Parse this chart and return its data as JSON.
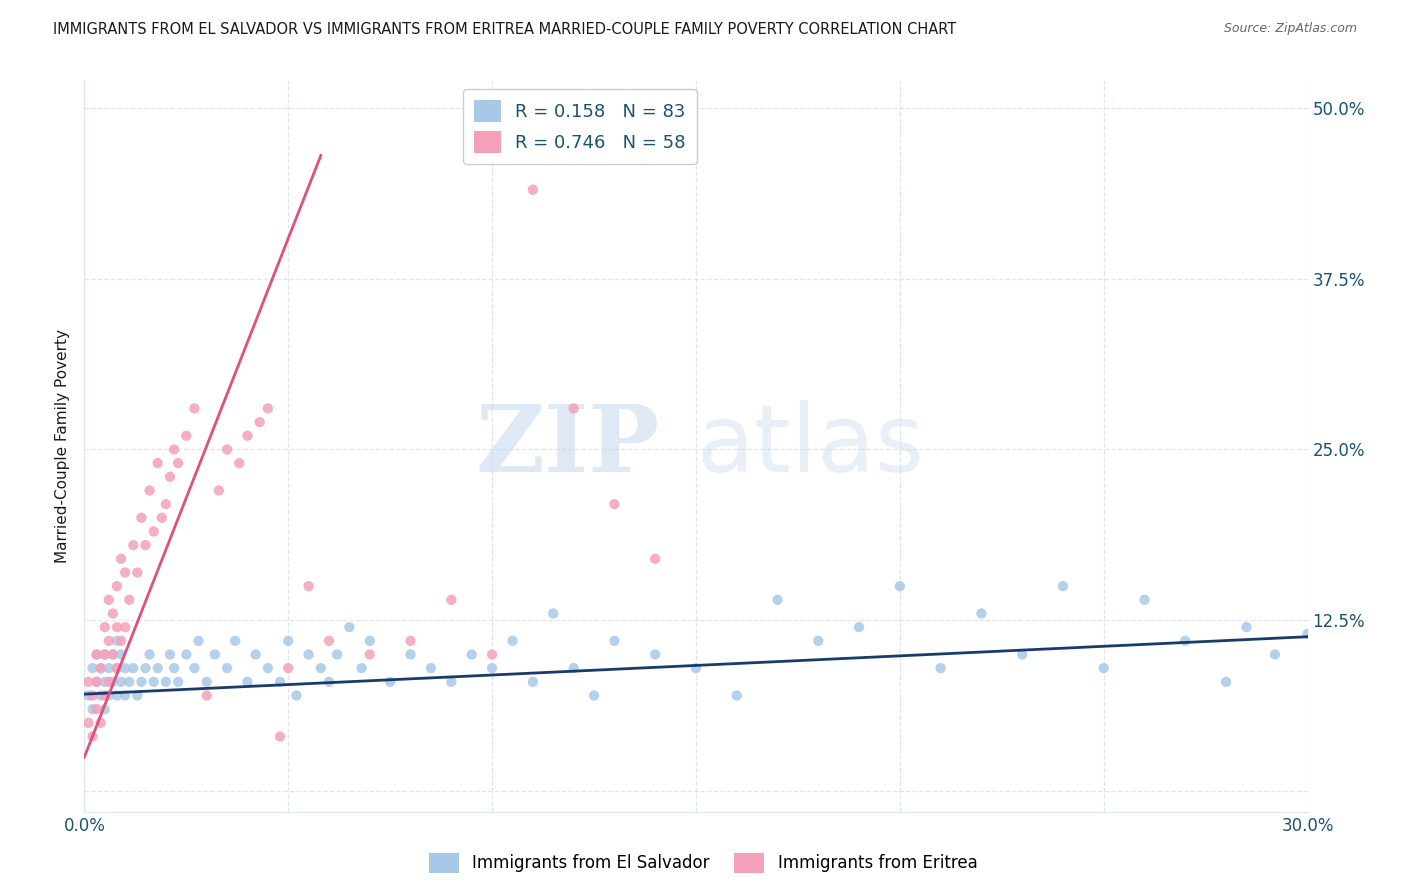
{
  "title": "IMMIGRANTS FROM EL SALVADOR VS IMMIGRANTS FROM ERITREA MARRIED-COUPLE FAMILY POVERTY CORRELATION CHART",
  "source": "Source: ZipAtlas.com",
  "ylabel": "Married-Couple Family Poverty",
  "xlim": [
    0.0,
    0.3
  ],
  "ylim": [
    -0.015,
    0.52
  ],
  "ytick_vals": [
    0.0,
    0.125,
    0.25,
    0.375,
    0.5
  ],
  "ytick_labels": [
    "",
    "12.5%",
    "25.0%",
    "37.5%",
    "50.0%"
  ],
  "xtick_vals": [
    0.0,
    0.05,
    0.1,
    0.15,
    0.2,
    0.25,
    0.3
  ],
  "xtick_labels": [
    "0.0%",
    "",
    "",
    "",
    "",
    "",
    "30.0%"
  ],
  "color_blue": "#a8c8e8",
  "color_pink": "#f4a0b8",
  "line_blue": "#1a3a6b",
  "line_pink": "#e0507a",
  "R_blue": 0.158,
  "N_blue": 83,
  "R_pink": 0.746,
  "N_pink": 58,
  "legend_blue": "Immigrants from El Salvador",
  "legend_pink": "Immigrants from Eritrea",
  "watermark_zip": "ZIP",
  "watermark_atlas": "atlas",
  "title_color": "#1a1a1a",
  "tick_label_color": "#1a5276",
  "background_color": "#ffffff",
  "grid_color": "#dce6f0",
  "blue_line_x": [
    0.0,
    0.3
  ],
  "blue_line_y": [
    0.071,
    0.113
  ],
  "pink_line_x": [
    0.0,
    0.058
  ],
  "pink_line_y": [
    0.025,
    0.465
  ],
  "blue_x": [
    0.001,
    0.002,
    0.002,
    0.003,
    0.003,
    0.004,
    0.004,
    0.005,
    0.005,
    0.005,
    0.006,
    0.006,
    0.007,
    0.007,
    0.008,
    0.008,
    0.008,
    0.009,
    0.009,
    0.01,
    0.01,
    0.011,
    0.012,
    0.013,
    0.014,
    0.015,
    0.016,
    0.017,
    0.018,
    0.02,
    0.021,
    0.022,
    0.023,
    0.025,
    0.027,
    0.028,
    0.03,
    0.032,
    0.035,
    0.037,
    0.04,
    0.042,
    0.045,
    0.048,
    0.05,
    0.052,
    0.055,
    0.058,
    0.06,
    0.062,
    0.065,
    0.068,
    0.07,
    0.075,
    0.08,
    0.085,
    0.09,
    0.095,
    0.1,
    0.105,
    0.11,
    0.115,
    0.12,
    0.125,
    0.13,
    0.14,
    0.15,
    0.16,
    0.17,
    0.18,
    0.19,
    0.2,
    0.21,
    0.22,
    0.23,
    0.24,
    0.25,
    0.26,
    0.27,
    0.28,
    0.285,
    0.292,
    0.3
  ],
  "blue_y": [
    0.07,
    0.09,
    0.06,
    0.08,
    0.1,
    0.07,
    0.09,
    0.06,
    0.08,
    0.1,
    0.07,
    0.09,
    0.08,
    0.1,
    0.07,
    0.09,
    0.11,
    0.08,
    0.1,
    0.07,
    0.09,
    0.08,
    0.09,
    0.07,
    0.08,
    0.09,
    0.1,
    0.08,
    0.09,
    0.08,
    0.1,
    0.09,
    0.08,
    0.1,
    0.09,
    0.11,
    0.08,
    0.1,
    0.09,
    0.11,
    0.08,
    0.1,
    0.09,
    0.08,
    0.11,
    0.07,
    0.1,
    0.09,
    0.08,
    0.1,
    0.12,
    0.09,
    0.11,
    0.08,
    0.1,
    0.09,
    0.08,
    0.1,
    0.09,
    0.11,
    0.08,
    0.13,
    0.09,
    0.07,
    0.11,
    0.1,
    0.09,
    0.07,
    0.14,
    0.11,
    0.12,
    0.15,
    0.09,
    0.13,
    0.1,
    0.15,
    0.09,
    0.14,
    0.11,
    0.08,
    0.12,
    0.1,
    0.115
  ],
  "pink_x": [
    0.001,
    0.001,
    0.002,
    0.002,
    0.003,
    0.003,
    0.003,
    0.004,
    0.004,
    0.005,
    0.005,
    0.005,
    0.006,
    0.006,
    0.006,
    0.007,
    0.007,
    0.008,
    0.008,
    0.008,
    0.009,
    0.009,
    0.01,
    0.01,
    0.011,
    0.012,
    0.013,
    0.014,
    0.015,
    0.016,
    0.017,
    0.018,
    0.019,
    0.02,
    0.021,
    0.022,
    0.023,
    0.025,
    0.027,
    0.03,
    0.033,
    0.035,
    0.038,
    0.04,
    0.043,
    0.045,
    0.048,
    0.05,
    0.055,
    0.06,
    0.07,
    0.08,
    0.09,
    0.1,
    0.11,
    0.12,
    0.13,
    0.14
  ],
  "pink_y": [
    0.05,
    0.08,
    0.04,
    0.07,
    0.06,
    0.08,
    0.1,
    0.05,
    0.09,
    0.07,
    0.1,
    0.12,
    0.08,
    0.11,
    0.14,
    0.1,
    0.13,
    0.09,
    0.12,
    0.15,
    0.11,
    0.17,
    0.12,
    0.16,
    0.14,
    0.18,
    0.16,
    0.2,
    0.18,
    0.22,
    0.19,
    0.24,
    0.2,
    0.21,
    0.23,
    0.25,
    0.24,
    0.26,
    0.28,
    0.07,
    0.22,
    0.25,
    0.24,
    0.26,
    0.27,
    0.28,
    0.04,
    0.09,
    0.15,
    0.11,
    0.1,
    0.11,
    0.14,
    0.1,
    0.44,
    0.28,
    0.21,
    0.17
  ]
}
